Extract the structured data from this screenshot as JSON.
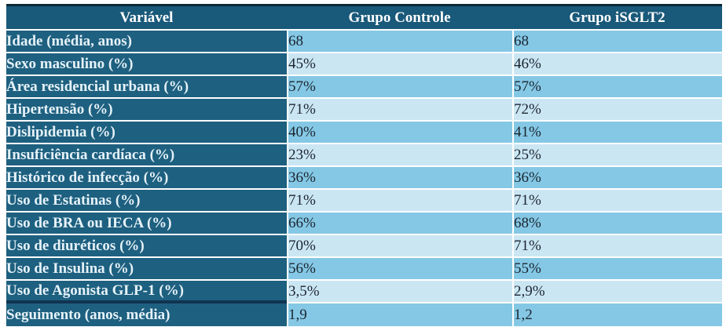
{
  "colors": {
    "header_bg": "#19597a",
    "first_col_bg": "#1e6080",
    "row_odd_bg": "#85c8e5",
    "row_even_bg": "#cbe6f3",
    "header_text": "#ffffff",
    "first_col_text": "#e6f2f8",
    "value_text": "#1b2631",
    "grid_line": "#ffffff",
    "top_border": "#0c2938",
    "last_row_divider": "#113450"
  },
  "table": {
    "columns": [
      {
        "label": "Variável"
      },
      {
        "label": "Grupo Controle"
      },
      {
        "label": "Grupo iSGLT2"
      }
    ],
    "rows": [
      {
        "label": "Idade (média, anos)",
        "controle": "68",
        "isglt2": "68"
      },
      {
        "label": "Sexo masculino (%)",
        "controle": "45%",
        "isglt2": "46%"
      },
      {
        "label": "Área residencial urbana (%)",
        "controle": "57%",
        "isglt2": "57%"
      },
      {
        "label": "Hipertensão (%)",
        "controle": "71%",
        "isglt2": "72%"
      },
      {
        "label": "Dislipidemia (%)",
        "controle": "40%",
        "isglt2": "41%"
      },
      {
        "label": "Insuficiência cardíaca (%)",
        "controle": "23%",
        "isglt2": "25%"
      },
      {
        "label": "Histórico de infecção (%)",
        "controle": "36%",
        "isglt2": "36%"
      },
      {
        "label": "Uso de Estatinas (%)",
        "controle": "71%",
        "isglt2": "71%"
      },
      {
        "label": "Uso de BRA ou IECA (%)",
        "controle": "66%",
        "isglt2": "68%"
      },
      {
        "label": "Uso de diuréticos (%)",
        "controle": "70%",
        "isglt2": "71%"
      },
      {
        "label": "Uso de Insulina (%)",
        "controle": "56%",
        "isglt2": "55%"
      },
      {
        "label": "Uso de Agonista GLP-1 (%)",
        "controle": "3,5%",
        "isglt2": "2,9%"
      },
      {
        "label": "Seguimento (anos, média)",
        "controle": "1,9",
        "isglt2": "1,2"
      }
    ]
  }
}
